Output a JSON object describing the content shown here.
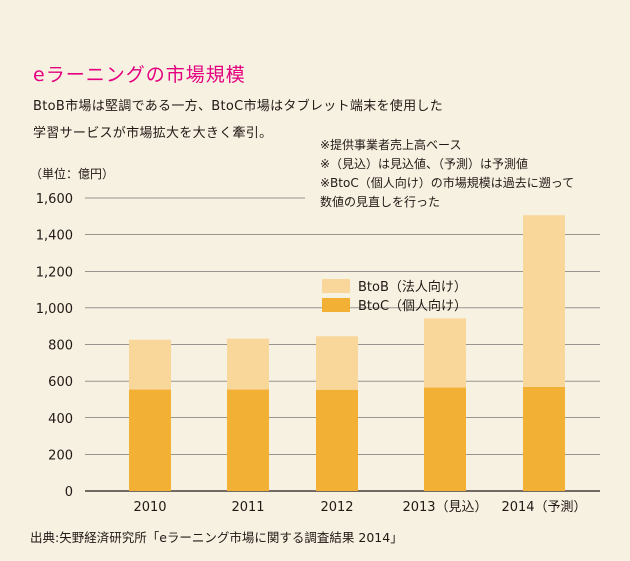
{
  "title": "eラーニングの市場規模",
  "description": [
    "BtoB市場は堅調である一方、BtoC市場はタブレット端末を使用した",
    "学習サービスが市場拡大を大きく牽引。"
  ],
  "unit_label": "（単位：億円）",
  "notes": [
    "※提供事業者売上高ベース",
    "※（見込）は見込値、（予測）は予測値",
    "※BtoC（個人向け）の市場規模は過去に遡って",
    "数値の見直しを行った"
  ],
  "source": "出典:矢野経済研究所「eラーニング市場に関する調査結果 2014」",
  "colors": {
    "btob": "#f9d79a",
    "btoc": "#f2b035",
    "title": "#e4007f",
    "background": "#f7f1e2"
  },
  "chart_data": {
    "type": "bar",
    "stacked": true,
    "categories": [
      "2010",
      "2011",
      "2012",
      "2013（見込）",
      "2014（予測）"
    ],
    "series": [
      {
        "name": "BtoC（個人向け）",
        "values": [
          554,
          554,
          553,
          565,
          569
        ]
      },
      {
        "name": "BtoB（法人向け）",
        "values": [
          272,
          278,
          292,
          378,
          937
        ]
      }
    ],
    "ylim": [
      0,
      1600
    ],
    "yticks": [
      0,
      200,
      400,
      600,
      800,
      1000,
      1200,
      1400,
      1600
    ],
    "ytick_labels": [
      "0",
      "200",
      "400",
      "600",
      "800",
      "1,000",
      "1,200",
      "1,400",
      "1,600"
    ],
    "grid": true,
    "legend": "center"
  }
}
